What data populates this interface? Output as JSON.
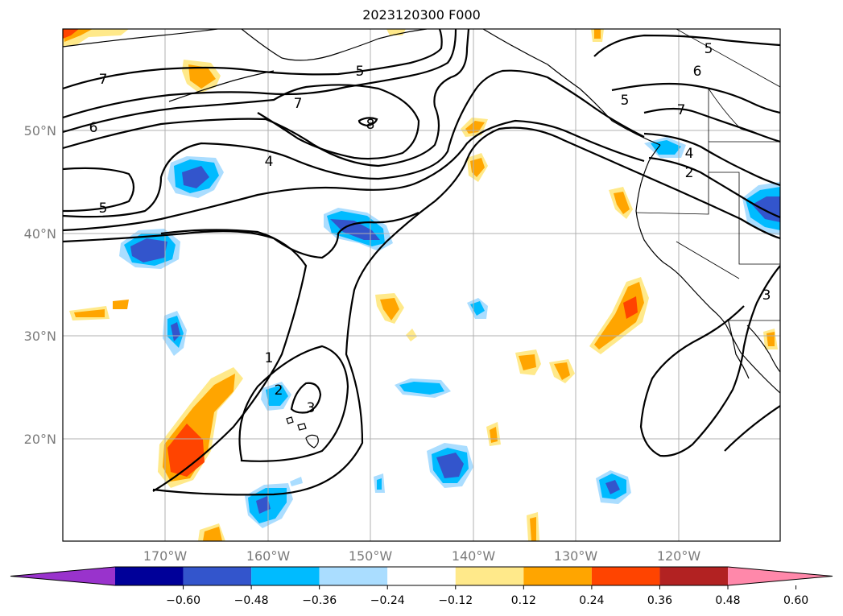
{
  "title": "2023120300 F000",
  "lat_labels": [
    "50°N",
    "40°N",
    "30°N",
    "20°N"
  ],
  "lon_labels": [
    "170°W",
    "160°W",
    "150°W",
    "140°W",
    "130°W",
    "120°W"
  ],
  "contour_labels": [
    "7",
    "5",
    "7",
    "6",
    "4",
    "5",
    "8",
    "5",
    "6",
    "7",
    "5",
    "4",
    "2",
    "1",
    "2",
    "3",
    "3"
  ],
  "colorbar": {
    "ticks": [
      "−0.60",
      "−0.48",
      "−0.36",
      "−0.24",
      "−0.12",
      "0.12",
      "0.24",
      "0.36",
      "0.48",
      "0.60"
    ],
    "colors": [
      "#9933cc",
      "#000099",
      "#3355cc",
      "#00bbff",
      "#aaddff",
      "#ffffff",
      "#ffe98a",
      "#ffa500",
      "#ff4400",
      "#b22222",
      "#ff88aa"
    ]
  }
}
